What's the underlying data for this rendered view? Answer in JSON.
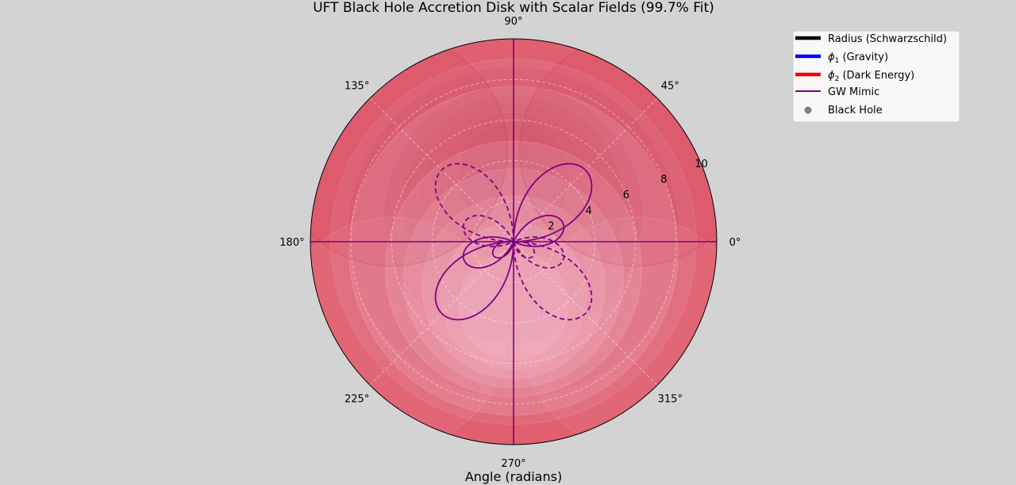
{
  "chart_data": {
    "type": "polar",
    "title": "UFT Black Hole Accretion Disk with Scalar Fields (99.7% Fit)",
    "xlabel": "Angle (radians)",
    "rlim": [
      0,
      10
    ],
    "grid": true,
    "legend_position": "upper-right, outside",
    "angle_ticks": [
      {
        "deg": 0,
        "label": "0°"
      },
      {
        "deg": 45,
        "label": "45°"
      },
      {
        "deg": 90,
        "label": "90°"
      },
      {
        "deg": 135,
        "label": "135°"
      },
      {
        "deg": 180,
        "label": "180°"
      },
      {
        "deg": 225,
        "label": "225°"
      },
      {
        "deg": 270,
        "label": "270°"
      },
      {
        "deg": 315,
        "label": "315°"
      }
    ],
    "radial_ticks": [
      {
        "value": 2,
        "label": "2"
      },
      {
        "value": 4,
        "label": "4"
      },
      {
        "value": 6,
        "label": "6"
      },
      {
        "value": 8,
        "label": "8"
      },
      {
        "value": 10,
        "label": "10"
      }
    ],
    "disk_rings": {
      "upper_half_radii": [
        10,
        9,
        7,
        6,
        5,
        4,
        3
      ],
      "upper_half_color": "#c01830",
      "lower_half_radii": [
        10,
        9,
        7,
        6,
        5,
        4,
        3
      ],
      "lower_half_color": "#f7d0e0",
      "background_color": "#e06070"
    },
    "gw_mimic": {
      "color": "#800080",
      "rings": [
        {
          "cx": 0.0,
          "cy": 5.5,
          "r": 4.5
        },
        {
          "cx": 5.5,
          "cy": 0.0,
          "r": 4.5
        },
        {
          "cx": 0.0,
          "cy": -5.5,
          "r": 4.5
        },
        {
          "cx": -5.5,
          "cy": 0.0,
          "r": 4.5
        }
      ],
      "solid_petals": [
        {
          "angle_deg": 45,
          "length": 5.0
        },
        {
          "angle_deg": 20,
          "length": 2.6
        },
        {
          "angle_deg": 225,
          "length": 5.0
        },
        {
          "angle_deg": 200,
          "length": 2.6
        },
        {
          "angle_deg": 215,
          "length": 1.2
        }
      ],
      "dashed_petals": [
        {
          "angle_deg": 135,
          "length": 5.0
        },
        {
          "angle_deg": 160,
          "length": 2.6
        },
        {
          "angle_deg": 315,
          "length": 5.0
        },
        {
          "angle_deg": 340,
          "length": 2.6
        },
        {
          "angle_deg": 325,
          "length": 1.2
        }
      ]
    },
    "legend": [
      {
        "label": "Radius (Schwarzschild)",
        "color": "#000000",
        "style": "line-thick"
      },
      {
        "label": "(Gravity)",
        "symbol": "ϕ",
        "sub": "1",
        "color": "#0000ff",
        "style": "line-thick"
      },
      {
        "label": "(Dark Energy)",
        "symbol": "ϕ",
        "sub": "2",
        "color": "#ff0000",
        "style": "line-thick"
      },
      {
        "label": "GW Mimic",
        "color": "#800080",
        "style": "line"
      },
      {
        "label": "Black Hole",
        "color": "#808080",
        "style": "dot"
      }
    ]
  }
}
